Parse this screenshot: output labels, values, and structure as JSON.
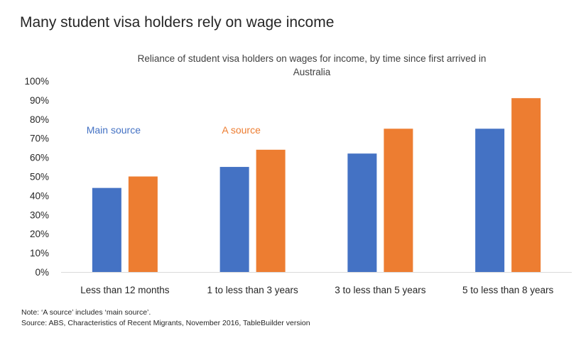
{
  "page": {
    "title": "Many student visa holders rely on wage income"
  },
  "chart_data": {
    "type": "bar",
    "title_lines": [
      "Reliance of student visa holders on wages for income, by time since first arrived in",
      "Australia"
    ],
    "categories": [
      "Less than 12 months",
      "1 to less than 3 years",
      "3 to less than 5 years",
      "5 to less than 8 years"
    ],
    "series": [
      {
        "name": "Main source",
        "values": [
          44,
          55,
          62,
          75
        ],
        "color": "#4472c4"
      },
      {
        "name": "A source",
        "values": [
          50,
          64,
          75,
          91
        ],
        "color": "#ed7d31"
      }
    ],
    "ylim": [
      0,
      100
    ],
    "y_tick_labels": [
      "0%",
      "10%",
      "20%",
      "30%",
      "40%",
      "50%",
      "60%",
      "70%",
      "80%",
      "90%",
      "100%"
    ],
    "grid": false,
    "legend_placement": "inline labels above first two groups"
  },
  "notes": {
    "note": "Note: ‘A source’ includes ‘main source’.",
    "source": "Source: ABS, Characteristics of Recent Migrants, November 2016, TableBuilder version"
  }
}
